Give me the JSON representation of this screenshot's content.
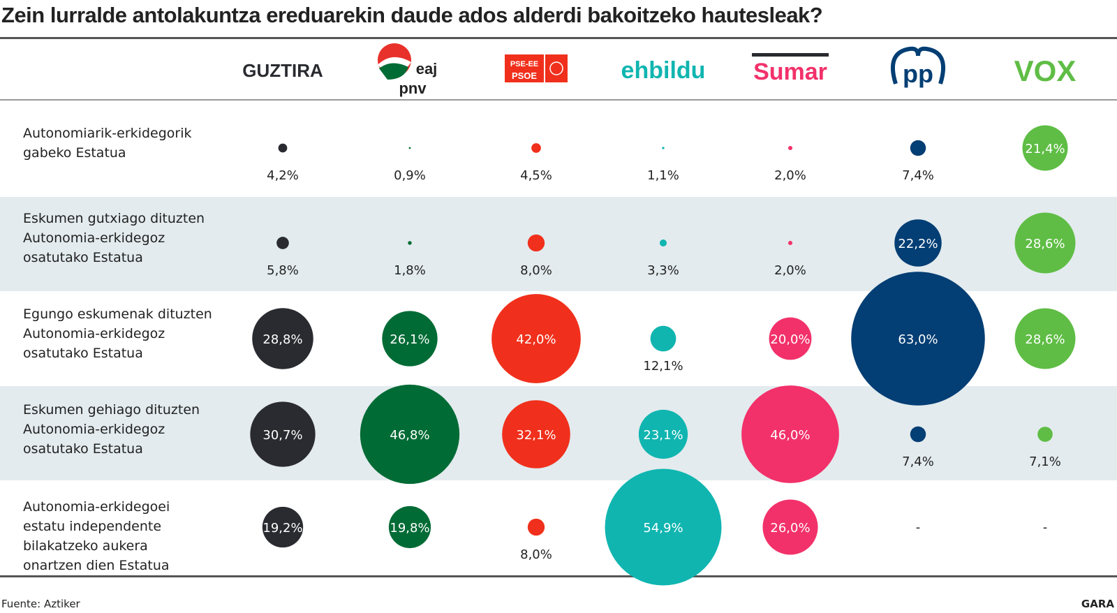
{
  "title": "Zein lurralde antolakuntza ereduarekin daude ados alderdi bakoitzeko hautesleak?",
  "source": "Fuente: Aztiker",
  "brand": "GARA",
  "chart_data": {
    "type": "bubble-table",
    "title": "Zein lurralde antolakuntza ereduarekin daude ados alderdi bakoitzeko hautesleak?",
    "unit": "%",
    "columns": [
      {
        "name": "GUZTIRA",
        "logo_text": [
          "GUZTIRA"
        ],
        "color": "#2a2b30"
      },
      {
        "name": "EAJ-PNV",
        "logo_text": [
          "eaj",
          "pnv"
        ],
        "color": "#006b35"
      },
      {
        "name": "PSE-EE PSOE",
        "logo_text": [
          "PSE-EE",
          "PSOE"
        ],
        "color": "#f0301c"
      },
      {
        "name": "EH Bildu",
        "logo_text": [
          "ehbildu"
        ],
        "color": "#10b5b0"
      },
      {
        "name": "Sumar",
        "logo_text": [
          "Sumar"
        ],
        "color": "#f2316a"
      },
      {
        "name": "PP",
        "logo_text": [
          "pp"
        ],
        "color": "#033e74"
      },
      {
        "name": "VOX",
        "logo_text": [
          "VOX"
        ],
        "color": "#5fbd45"
      }
    ],
    "rows": [
      {
        "label": [
          "Autonomiarik-erkidegorik",
          "gabeko Estatua"
        ],
        "values": [
          4.2,
          0.9,
          4.5,
          1.1,
          2.0,
          7.4,
          21.4
        ]
      },
      {
        "label": [
          "Eskumen gutxiago dituzten",
          "Autonomia-erkidegoz",
          "osatutako Estatua"
        ],
        "values": [
          5.8,
          1.8,
          8.0,
          3.3,
          2.0,
          22.2,
          28.6
        ]
      },
      {
        "label": [
          "Egungo eskumenak dituzten",
          "Autonomia-erkidegoz",
          "osatutako Estatua"
        ],
        "values": [
          28.8,
          26.1,
          42.0,
          12.1,
          20.0,
          63.0,
          28.6
        ]
      },
      {
        "label": [
          "Eskumen gehiago dituzten",
          "Autonomia-erkidegoz",
          "osatutako Estatua"
        ],
        "values": [
          30.7,
          46.8,
          32.1,
          23.1,
          46.0,
          7.4,
          7.1
        ]
      },
      {
        "label": [
          "Autonomia-erkidegoei",
          "estatu independente",
          "bilakatzeko aukera",
          "onartzen dien Estatua"
        ],
        "values": [
          19.2,
          19.8,
          8.0,
          54.9,
          26.0,
          null,
          null
        ]
      }
    ],
    "missing_label": "-"
  }
}
